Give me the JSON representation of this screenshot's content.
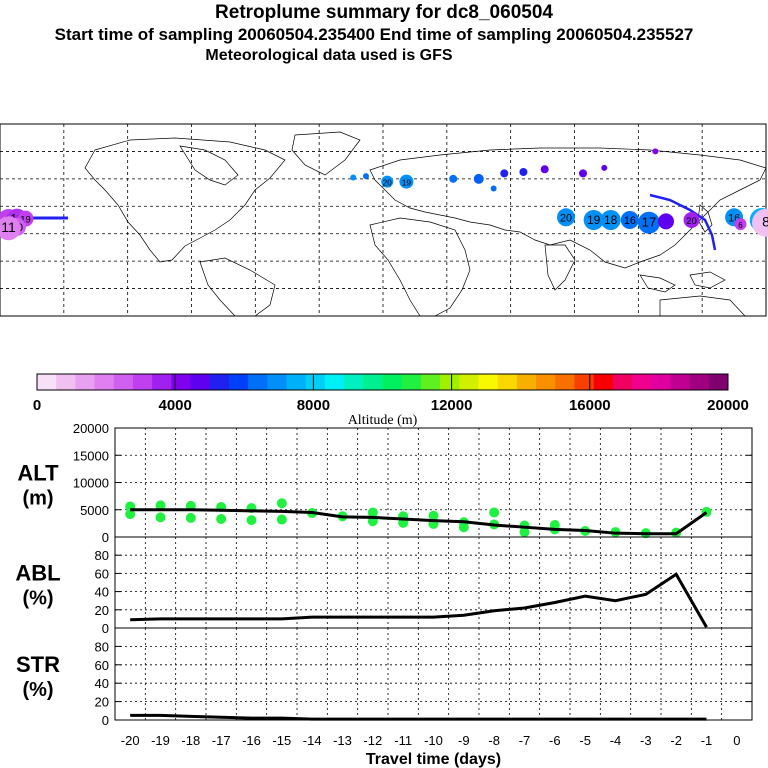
{
  "header": {
    "title": "Retroplume summary for dc8_060504",
    "sampling_line": "Start time of sampling 20060504.235400     End time of sampling 20060504.235527",
    "met_line": "Meteorological data used is GFS"
  },
  "colorbar": {
    "label": "Altitude (m)",
    "ticks": [
      "0",
      "4000",
      "8000",
      "12000",
      "16000",
      "20000"
    ],
    "colors": [
      "#f8e0f8",
      "#f0c0f0",
      "#e8a0f0",
      "#e080f0",
      "#d060f0",
      "#c040f0",
      "#a020f0",
      "#8000f0",
      "#6000f0",
      "#2020f0",
      "#0040f8",
      "#0070f8",
      "#0090f8",
      "#00b0f8",
      "#00d0f8",
      "#00f0f8",
      "#00f0c0",
      "#00f090",
      "#00f060",
      "#20f040",
      "#60f020",
      "#a0f000",
      "#d0f000",
      "#f8f800",
      "#f8d800",
      "#f8b000",
      "#f89000",
      "#f87000",
      "#f84000",
      "#f80000",
      "#f00060",
      "#f0008c",
      "#e000a0",
      "#c00090",
      "#a00080",
      "#800070"
    ]
  },
  "map": {
    "markers": [
      {
        "lon": -176,
        "lat": 10,
        "label": "1",
        "color": "#c040f0",
        "r": 11
      },
      {
        "lon": -172,
        "lat": 11,
        "label": "18",
        "color": "#b030f0",
        "r": 10
      },
      {
        "lon": -168,
        "lat": 11,
        "label": "19",
        "color": "#c040f0",
        "r": 8
      },
      {
        "lon": -172,
        "lat": 5,
        "label": "20",
        "color": "#d060f0",
        "r": 9
      },
      {
        "lon": -176,
        "lat": 4,
        "label": "11",
        "color": "#e080f0",
        "r": 12
      },
      {
        "lon": 2,
        "lat": 38,
        "label": "20",
        "color": "#0090f8",
        "r": 6
      },
      {
        "lon": 11,
        "lat": 38,
        "label": "19",
        "color": "#0090f8",
        "r": 7
      },
      {
        "lon": -14,
        "lat": 41,
        "label": "",
        "color": "#0090f8",
        "r": 3
      },
      {
        "lon": -8,
        "lat": 42,
        "label": "",
        "color": "#0070f8",
        "r": 3
      },
      {
        "lon": 33,
        "lat": 40,
        "label": "",
        "color": "#0070f8",
        "r": 4
      },
      {
        "lon": 45,
        "lat": 40,
        "label": "",
        "color": "#0060f8",
        "r": 5
      },
      {
        "lon": 57,
        "lat": 44,
        "label": "",
        "color": "#2020f0",
        "r": 4
      },
      {
        "lon": 66,
        "lat": 45,
        "label": "",
        "color": "#2020f0",
        "r": 4
      },
      {
        "lon": 76,
        "lat": 47,
        "label": "",
        "color": "#6000f0",
        "r": 4
      },
      {
        "lon": 94,
        "lat": 44,
        "label": "",
        "color": "#6000f0",
        "r": 4
      },
      {
        "lon": 104,
        "lat": 48,
        "label": "",
        "color": "#6000f0",
        "r": 3
      },
      {
        "lon": 128,
        "lat": 60,
        "label": "",
        "color": "#8000f0",
        "r": 3
      },
      {
        "lon": 52,
        "lat": 33,
        "label": "",
        "color": "#0070f8",
        "r": 3
      },
      {
        "lon": 86,
        "lat": 12,
        "label": "20",
        "color": "#0090f8",
        "r": 9
      },
      {
        "lon": 99,
        "lat": 10,
        "label": "19",
        "color": "#0090f8",
        "r": 10
      },
      {
        "lon": 107,
        "lat": 10,
        "label": "18",
        "color": "#0090f8",
        "r": 10
      },
      {
        "lon": 116,
        "lat": 10,
        "label": "16",
        "color": "#0070f8",
        "r": 9
      },
      {
        "lon": 125,
        "lat": 8,
        "label": "17",
        "color": "#0070f8",
        "r": 11
      },
      {
        "lon": 133,
        "lat": 9,
        "label": "",
        "color": "#6000f0",
        "r": 8
      },
      {
        "lon": 145,
        "lat": 10,
        "label": "20",
        "color": "#a020f0",
        "r": 8
      },
      {
        "lon": 165,
        "lat": 12,
        "label": "16",
        "color": "#0090f8",
        "r": 9
      },
      {
        "lon": 178,
        "lat": 10,
        "label": "15",
        "color": "#00b0f8",
        "r": 12
      },
      {
        "lon": 168,
        "lat": 7,
        "label": "6",
        "color": "#c040f0",
        "r": 6
      },
      {
        "lon": 180,
        "lat": 8,
        "label": "8",
        "color": "#f0c0f0",
        "r": 14
      }
    ]
  },
  "chart_data": [
    {
      "type": "line",
      "panel": "ALT",
      "title": "ALT",
      "ylabel": "(m)",
      "ylim": [
        0,
        20000
      ],
      "yticks": [
        "20000",
        "15000",
        "10000",
        "5000",
        "0"
      ],
      "x": [
        -20,
        -19,
        -18,
        -17,
        -16,
        -15,
        -14,
        -13,
        -12,
        -11,
        -10,
        -9,
        -8,
        -7,
        -6,
        -5,
        -4,
        -3,
        -2,
        -1
      ],
      "values": [
        5000,
        5000,
        5000,
        4900,
        4800,
        4700,
        4500,
        3700,
        3600,
        3300,
        3000,
        2800,
        2200,
        1800,
        1400,
        1200,
        700,
        600,
        600,
        4500
      ],
      "scatter_points": [
        {
          "x": -20,
          "y": 5600
        },
        {
          "x": -20,
          "y": 4200
        },
        {
          "x": -19,
          "y": 5800
        },
        {
          "x": -19,
          "y": 3600
        },
        {
          "x": -18,
          "y": 5700
        },
        {
          "x": -18,
          "y": 3500
        },
        {
          "x": -17,
          "y": 5500
        },
        {
          "x": -17,
          "y": 3300
        },
        {
          "x": -16,
          "y": 5300
        },
        {
          "x": -16,
          "y": 3100
        },
        {
          "x": -15,
          "y": 6200
        },
        {
          "x": -15,
          "y": 3200
        },
        {
          "x": -14,
          "y": 4400
        },
        {
          "x": -13,
          "y": 3800
        },
        {
          "x": -12,
          "y": 4500
        },
        {
          "x": -12,
          "y": 2900
        },
        {
          "x": -11,
          "y": 3800
        },
        {
          "x": -11,
          "y": 2600
        },
        {
          "x": -10,
          "y": 3900
        },
        {
          "x": -10,
          "y": 2400
        },
        {
          "x": -9,
          "y": 2700
        },
        {
          "x": -9,
          "y": 1800
        },
        {
          "x": -8,
          "y": 2300
        },
        {
          "x": -8,
          "y": 4500
        },
        {
          "x": -7,
          "y": 2100
        },
        {
          "x": -7,
          "y": 900
        },
        {
          "x": -6,
          "y": 1400
        },
        {
          "x": -6,
          "y": 2200
        },
        {
          "x": -5,
          "y": 1100
        },
        {
          "x": -4,
          "y": 900
        },
        {
          "x": -3,
          "y": 700
        },
        {
          "x": -2,
          "y": 800
        },
        {
          "x": -1,
          "y": 4600
        }
      ]
    },
    {
      "type": "line",
      "panel": "ABL",
      "title": "ABL",
      "ylabel": "(%)",
      "ylim": [
        0,
        100
      ],
      "yticks": [
        "80",
        "60",
        "40",
        "20",
        "0"
      ],
      "x": [
        -20,
        -19,
        -18,
        -17,
        -16,
        -15,
        -14,
        -13,
        -12,
        -11,
        -10,
        -9,
        -8,
        -7,
        -6,
        -5,
        -4,
        -3,
        -2,
        -1
      ],
      "values": [
        9,
        10,
        10,
        10,
        10,
        10,
        12,
        12,
        12,
        12,
        12,
        14,
        19,
        22,
        28,
        35,
        30,
        37,
        59,
        1
      ]
    },
    {
      "type": "line",
      "panel": "STR",
      "title": "STR",
      "ylabel": "(%)",
      "ylim": [
        0,
        100
      ],
      "yticks": [
        "80",
        "60",
        "40",
        "20",
        "0"
      ],
      "x": [
        -20,
        -19,
        -18,
        -17,
        -16,
        -15,
        -14,
        -13,
        -12,
        -11,
        -10,
        -9,
        -8,
        -7,
        -6,
        -5,
        -4,
        -3,
        -2,
        -1
      ],
      "values": [
        5,
        5,
        4,
        3,
        2,
        2,
        1,
        1,
        1,
        1,
        1,
        1,
        1,
        1,
        1,
        1,
        1,
        1,
        1,
        1
      ],
      "xlabel": "Travel time (days)",
      "xticks": [
        "-20",
        "-19",
        "-18",
        "-17",
        "-16",
        "-15",
        "-14",
        "-13",
        "-12",
        "-11",
        "-10",
        "-9",
        "-8",
        "-7",
        "-6",
        "-5",
        "-4",
        "-3",
        "-2",
        "-1",
        "0"
      ]
    }
  ]
}
